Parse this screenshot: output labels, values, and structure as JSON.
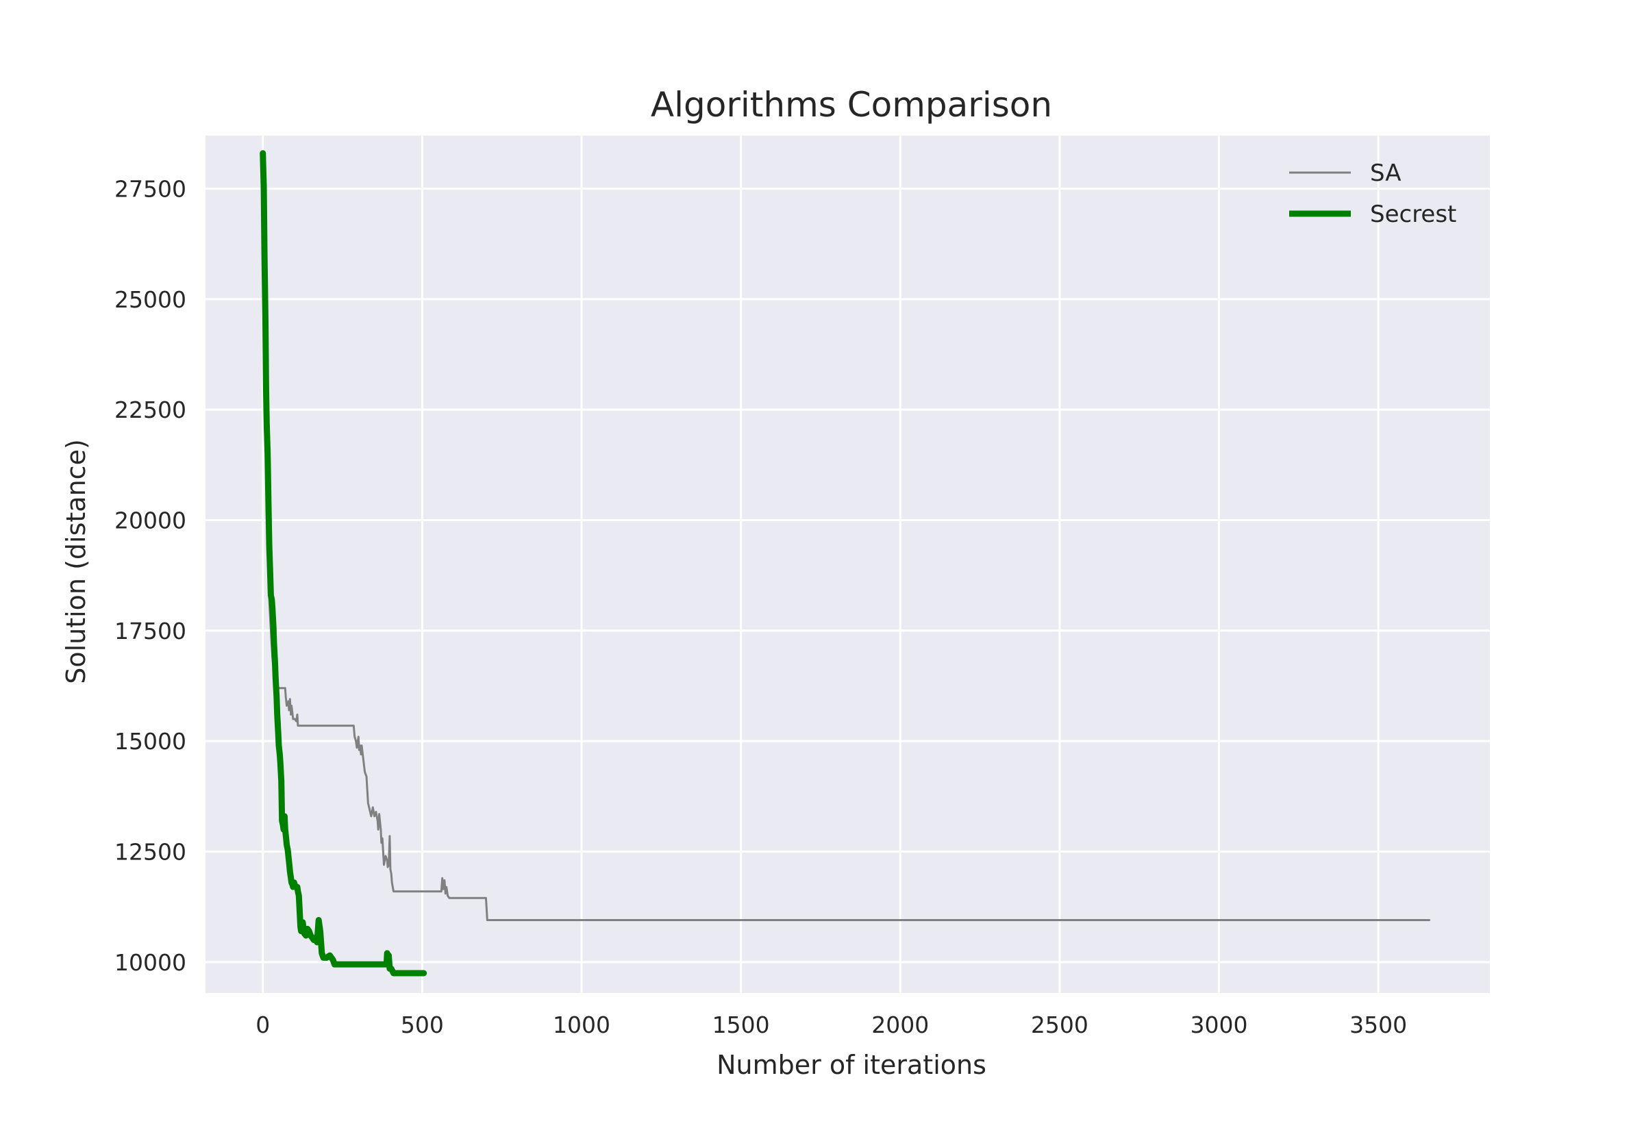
{
  "chart_data": {
    "type": "line",
    "title": "Algorithms Comparison",
    "xlabel": "Number of iterations",
    "ylabel": "Solution (distance)",
    "xlim": [
      -180,
      3850
    ],
    "ylim": [
      9300,
      28700
    ],
    "xticks": [
      0,
      500,
      1000,
      1500,
      2000,
      2500,
      3000,
      3500
    ],
    "yticks": [
      10000,
      12500,
      15000,
      17500,
      20000,
      22500,
      25000,
      27500
    ],
    "grid": true,
    "legend": "top-right",
    "colors": {
      "background": "#eaeaf2",
      "grid": "#ffffff",
      "sa": "#808080",
      "secrest": "#008000"
    },
    "series": [
      {
        "name": "SA",
        "x": [
          0,
          3,
          6,
          10,
          12,
          15,
          18,
          20,
          25,
          30,
          35,
          40,
          45,
          50,
          55,
          60,
          70,
          72,
          75,
          80,
          82,
          85,
          88,
          90,
          95,
          100,
          105,
          108,
          110,
          115,
          120,
          285,
          288,
          292,
          295,
          300,
          302,
          305,
          308,
          310,
          315,
          320,
          325,
          330,
          340,
          345,
          350,
          355,
          360,
          362,
          365,
          370,
          372,
          375,
          380,
          385,
          390,
          392,
          395,
          398,
          400,
          403,
          405,
          410,
          415,
          420,
          425,
          430,
          560,
          563,
          566,
          570,
          573,
          576,
          580,
          585,
          590,
          700,
          702,
          704,
          3660
        ],
        "y": [
          26800,
          24500,
          23200,
          21800,
          21000,
          19600,
          18800,
          18200,
          17500,
          16900,
          16500,
          16300,
          16250,
          16200,
          16200,
          16200,
          16200,
          16000,
          15800,
          15900,
          15700,
          15950,
          15600,
          15800,
          15500,
          15500,
          15450,
          15600,
          15350,
          15350,
          15350,
          15350,
          15100,
          15000,
          14850,
          15100,
          14800,
          14900,
          14700,
          14900,
          14600,
          14300,
          14200,
          13600,
          13300,
          13500,
          13300,
          13400,
          13200,
          13000,
          13350,
          13000,
          12700,
          12800,
          12200,
          12400,
          12300,
          12150,
          12200,
          12850,
          12100,
          12000,
          11800,
          11600,
          11600,
          11600,
          11600,
          11600,
          11600,
          11900,
          11650,
          11850,
          11550,
          11700,
          11500,
          11450,
          11450,
          11450,
          11200,
          10950,
          10950
        ]
      },
      {
        "name": "Secrest",
        "x": [
          0,
          3,
          5,
          8,
          10,
          12,
          15,
          18,
          20,
          22,
          25,
          28,
          30,
          33,
          35,
          38,
          40,
          43,
          45,
          48,
          50,
          53,
          55,
          58,
          60,
          63,
          65,
          68,
          70,
          73,
          75,
          78,
          80,
          83,
          85,
          88,
          90,
          93,
          95,
          98,
          100,
          103,
          105,
          108,
          110,
          113,
          115,
          118,
          120,
          125,
          130,
          135,
          140,
          145,
          150,
          155,
          160,
          165,
          170,
          175,
          180,
          183,
          185,
          190,
          200,
          210,
          215,
          220,
          225,
          230,
          240,
          260,
          300,
          340,
          380,
          385,
          388,
          390,
          393,
          395,
          398,
          400,
          403,
          410,
          420,
          450,
          480,
          505
        ],
        "y": [
          28300,
          27500,
          26000,
          24500,
          23000,
          22200,
          21500,
          20200,
          19400,
          19000,
          18300,
          18200,
          18000,
          17600,
          17200,
          16800,
          16400,
          16000,
          15600,
          15200,
          14900,
          14700,
          14500,
          14100,
          13200,
          13100,
          13000,
          13300,
          13000,
          12800,
          12650,
          12550,
          12400,
          12200,
          12050,
          11900,
          11800,
          11750,
          11700,
          11800,
          11750,
          11700,
          11700,
          11700,
          11600,
          11500,
          11200,
          10800,
          10700,
          10900,
          10650,
          10600,
          10750,
          10700,
          10600,
          10550,
          10500,
          10550,
          10450,
          10950,
          10700,
          10400,
          10200,
          10100,
          10100,
          10150,
          10100,
          10050,
          9950,
          9950,
          9950,
          9950,
          9950,
          9950,
          9950,
          9950,
          9950,
          10200,
          9950,
          10150,
          9850,
          9850,
          9850,
          9750,
          9750,
          9750,
          9750,
          9750
        ]
      }
    ]
  }
}
